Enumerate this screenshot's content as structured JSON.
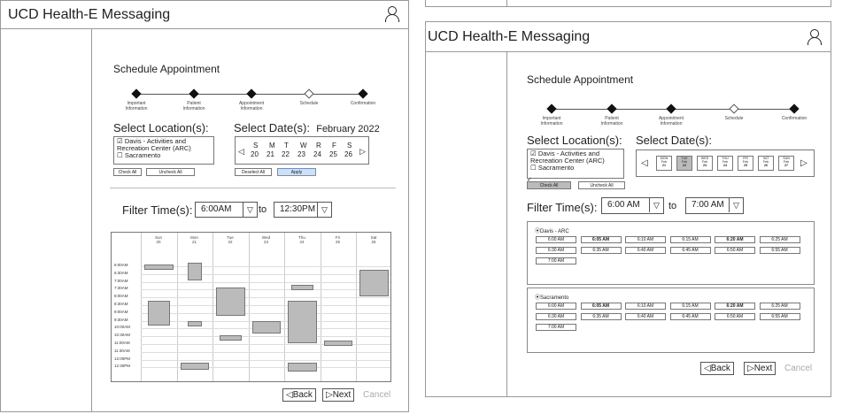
{
  "left": {
    "app_title": "UCD Health-E Messaging",
    "page_title": "Schedule Appointment",
    "steps": [
      "Important Information",
      "Patient Information",
      "Appointment Information",
      "Schedule",
      "Confirmation"
    ],
    "loc_label": "Select Location(s):",
    "locations": [
      {
        "label": "Davis - Activities and Recreation Center (ARC)",
        "checked": true
      },
      {
        "label": "Sacramento",
        "checked": false
      }
    ],
    "check_all": "Check All",
    "uncheck_all": "Uncheck All",
    "date_label": "Select Date(s):",
    "month": "February 2022",
    "weekdays": [
      "S",
      "M",
      "T",
      "W",
      "R",
      "F",
      "S"
    ],
    "dates": [
      "20",
      "21",
      "22",
      "23",
      "24",
      "25",
      "26"
    ],
    "deselect_all": "Deselect All",
    "apply": "Apply",
    "filter_label": "Filter Time(s):",
    "from_time": "6:00AM",
    "to_label": "to",
    "to_time": "12:30PM",
    "cal_days": [
      {
        "d": "Sun",
        "n": "20"
      },
      {
        "d": "Mon",
        "n": "21"
      },
      {
        "d": "Tue",
        "n": "22"
      },
      {
        "d": "Wed",
        "n": "23"
      },
      {
        "d": "Thu",
        "n": "24"
      },
      {
        "d": "Fri",
        "n": "25"
      },
      {
        "d": "Sat",
        "n": "26"
      }
    ],
    "cal_times": [
      "6:00AM",
      "6:30AM",
      "7:00AM",
      "7:30AM",
      "8:00AM",
      "8:30AM",
      "9:00AM",
      "9:30AM",
      "10:00AM",
      "10:30AM",
      "11:00AM",
      "11:30AM",
      "12:00PM",
      "12:30PM"
    ],
    "back": "Back",
    "next": "Next",
    "cancel": "Cancel"
  },
  "right": {
    "app_title": "UCD Health-E Messaging",
    "page_title": "Schedule Appointment",
    "steps": [
      "Important Information",
      "Patient Information",
      "Appointment Information",
      "Schedule",
      "Confirmation"
    ],
    "loc_label": "Select Location(s):",
    "locations": [
      {
        "label": "Davis - Activities and Recreation Center (ARC)",
        "checked": true
      },
      {
        "label": "Sacramento",
        "checked": false
      }
    ],
    "check_all": "Check All",
    "uncheck_all": "Uncheck All",
    "date_label": "Select Date(s):",
    "date_buttons": [
      {
        "d": "MON",
        "m": "Feb",
        "n": "21"
      },
      {
        "d": "TUE",
        "m": "Feb",
        "n": "22"
      },
      {
        "d": "WED",
        "m": "Feb",
        "n": "23"
      },
      {
        "d": "THU",
        "m": "Feb",
        "n": "24"
      },
      {
        "d": "FRI",
        "m": "Feb",
        "n": "25"
      },
      {
        "d": "SAT",
        "m": "Feb",
        "n": "26"
      },
      {
        "d": "SUN",
        "m": "Feb",
        "n": "27"
      }
    ],
    "filter_label": "Filter Time(s):",
    "from_time": "6:00 AM",
    "to_label": "to",
    "to_time": "7:00 AM",
    "groups": [
      {
        "name": "Davis - ARC",
        "slots": [
          "6:00 AM",
          "6:05 AM",
          "6:10 AM",
          "6:15 AM",
          "6:20 AM",
          "6:25 AM",
          "6:30 AM",
          "6:35 AM",
          "6:40 AM",
          "6:45 AM",
          "6:50 AM",
          "6:55 AM",
          "7:00 AM"
        ]
      },
      {
        "name": "Sacramento",
        "slots": [
          "6:00 AM",
          "6:05 AM",
          "6:10 AM",
          "6:15 AM",
          "6:20 AM",
          "6:25 AM",
          "6:30 AM",
          "6:35 AM",
          "6:40 AM",
          "6:45 AM",
          "6:50 AM",
          "6:55 AM",
          "7:00 AM"
        ]
      }
    ],
    "back": "Back",
    "next": "Next",
    "cancel": "Cancel"
  }
}
